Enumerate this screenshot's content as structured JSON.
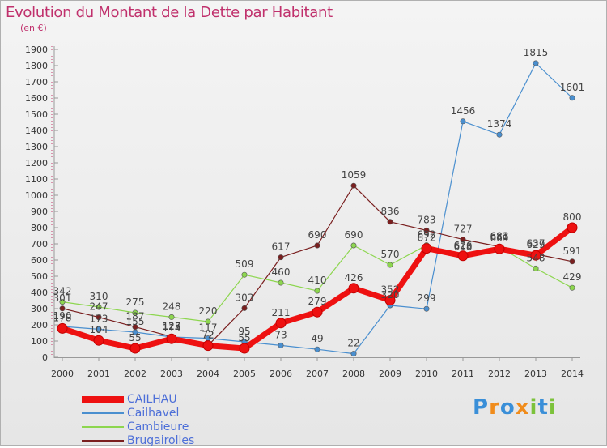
{
  "header": {
    "title": "Evolution du Montant de la Dette par Habitant",
    "unit": "(en €)"
  },
  "brand": {
    "name": "Proxiti",
    "letters": [
      {
        "char": "P",
        "color": "#3a8fd8"
      },
      {
        "char": "r",
        "color": "#f08c1c"
      },
      {
        "char": "o",
        "color": "#3a8fd8"
      },
      {
        "char": "x",
        "color": "#f08c1c"
      },
      {
        "char": "i",
        "color": "#7cc23b"
      },
      {
        "char": "t",
        "color": "#3a8fd8"
      },
      {
        "char": "i",
        "color": "#7cc23b"
      }
    ]
  },
  "chart_data": {
    "type": "line",
    "title": "Evolution du Montant de la Dette par Habitant",
    "subtitle": "(en €)",
    "x": [
      2000,
      2001,
      2002,
      2003,
      2004,
      2005,
      2006,
      2007,
      2008,
      2009,
      2010,
      2011,
      2012,
      2013,
      2014
    ],
    "ylim": [
      0,
      1900
    ],
    "ytick_step": 100,
    "grid": false,
    "legend_position": "bottom-left",
    "series": [
      {
        "name": "CAILHAU",
        "color": "#ee1111",
        "values": [
          178,
          104,
          55,
          114,
          72,
          55,
          211,
          279,
          426,
          352,
          672,
          626,
          669,
          629,
          800
        ]
      },
      {
        "name": "Cailhavel",
        "color": "#4a8fcf",
        "values": [
          190,
          173,
          155,
          125,
          117,
          95,
          73,
          49,
          22,
          320,
          299,
          1456,
          1374,
          1815,
          1601
        ]
      },
      {
        "name": "Cambieure",
        "color": "#8dd64f",
        "values": [
          342,
          310,
          275,
          248,
          220,
          509,
          460,
          410,
          690,
          570,
          692,
          618,
          681,
          548,
          429
        ]
      },
      {
        "name": "Brugairolles",
        "color": "#7a1f1f",
        "values": [
          301,
          247,
          187,
          127,
          72,
          303,
          617,
          690,
          1059,
          836,
          783,
          727,
          683,
          637,
          591
        ]
      }
    ]
  }
}
